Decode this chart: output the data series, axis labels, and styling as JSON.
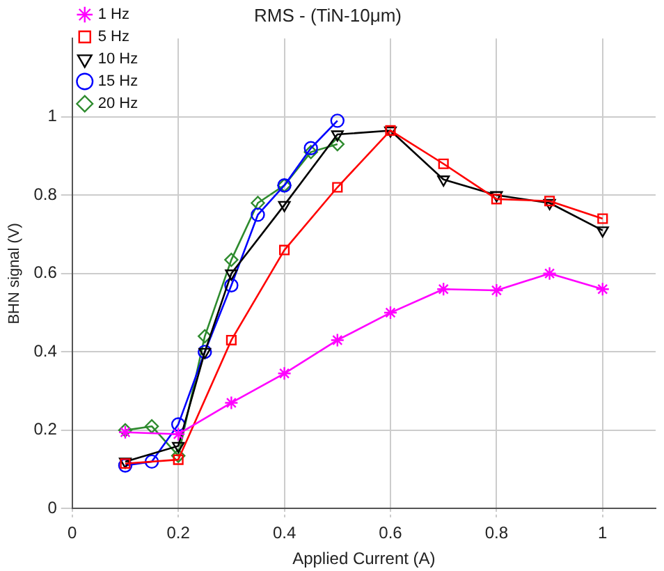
{
  "chart_data": {
    "type": "line",
    "title": "RMS - (TiN-10μm)",
    "xlabel": "Applied Current (A)",
    "ylabel": "BHN signal (V)",
    "xlim": [
      0,
      1.1
    ],
    "xticks": [
      0,
      0.2,
      0.4,
      0.6,
      0.8,
      1
    ],
    "ylim": [
      0,
      1.2
    ],
    "yticks": [
      0,
      0.2,
      0.4,
      0.6,
      0.8,
      1
    ],
    "grid": true,
    "legend": "top left",
    "line_style": "solid",
    "series": [
      {
        "name": "1 Hz",
        "color": "#ff00ff",
        "marker": "cross",
        "x": [
          0.1,
          0.2,
          0.3,
          0.4,
          0.5,
          0.6,
          0.7,
          0.8,
          0.9,
          1
        ],
        "values": [
          0.195,
          0.19,
          0.27,
          0.345,
          0.43,
          0.5,
          0.56,
          0.557,
          0.6,
          0.56
        ]
      },
      {
        "name": "5 Hz",
        "color": "#ff0000",
        "marker": "square",
        "x": [
          0.1,
          0.2,
          0.3,
          0.4,
          0.5,
          0.6,
          0.7,
          0.8,
          0.9,
          1
        ],
        "values": [
          0.115,
          0.125,
          0.43,
          0.66,
          0.82,
          0.965,
          0.88,
          0.79,
          0.785,
          0.74
        ]
      },
      {
        "name": "10 Hz",
        "color": "#000000",
        "marker": "triangle",
        "x": [
          0.1,
          0.2,
          0.25,
          0.3,
          0.4,
          0.5,
          0.6,
          0.7,
          0.8,
          0.9,
          1
        ],
        "values": [
          0.12,
          0.16,
          0.4,
          0.6,
          0.775,
          0.955,
          0.965,
          0.84,
          0.8,
          0.78,
          0.71
        ]
      },
      {
        "name": "15 Hz",
        "color": "#0000ff",
        "marker": "circle",
        "x": [
          0.1,
          0.15,
          0.2,
          0.25,
          0.3,
          0.35,
          0.4,
          0.45,
          0.5
        ],
        "values": [
          0.11,
          0.12,
          0.215,
          0.4,
          0.57,
          0.75,
          0.825,
          0.92,
          0.99
        ]
      },
      {
        "name": "20 Hz",
        "color": "#2e8b2e",
        "marker": "diamond",
        "x": [
          0.1,
          0.15,
          0.2,
          0.25,
          0.3,
          0.35,
          0.4,
          0.45,
          0.5
        ],
        "values": [
          0.2,
          0.21,
          0.135,
          0.44,
          0.635,
          0.78,
          0.825,
          0.91,
          0.93
        ]
      }
    ]
  }
}
